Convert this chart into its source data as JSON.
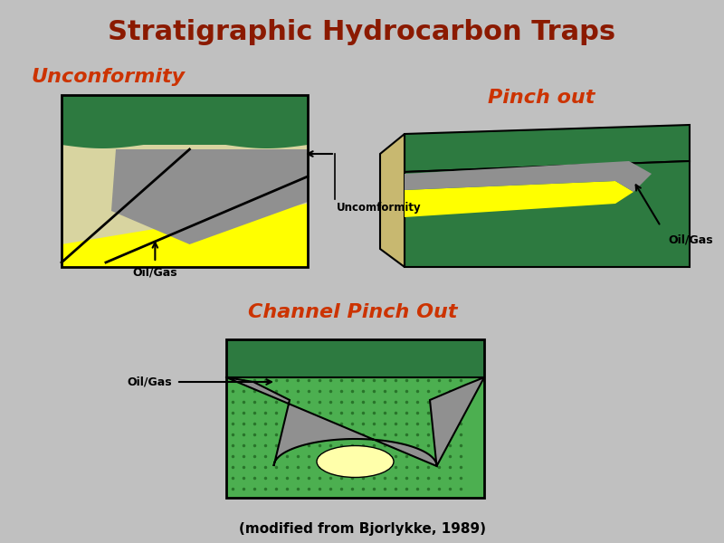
{
  "title": "Stratigraphic Hydrocarbon Traps",
  "title_color": "#8B1A00",
  "title_fontsize": 22,
  "subtitle_unconformity": "Unconformity",
  "subtitle_pinchout": "Pinch out",
  "subtitle_channel": "Channel Pinch Out",
  "subtitle_color": "#CC3300",
  "subtitle_fontsize": 16,
  "bg_color": "#C0C0C0",
  "dark_green": "#2D7A40",
  "light_green": "#4CAF50",
  "yellow": "#FFFF00",
  "light_yellow": "#FFFFAA",
  "light_tan": "#D8D4A0",
  "gray": "#909090",
  "dark_gray": "#606060",
  "caption": "(modified from Bjorlykke, 1989)",
  "caption_fontsize": 11
}
